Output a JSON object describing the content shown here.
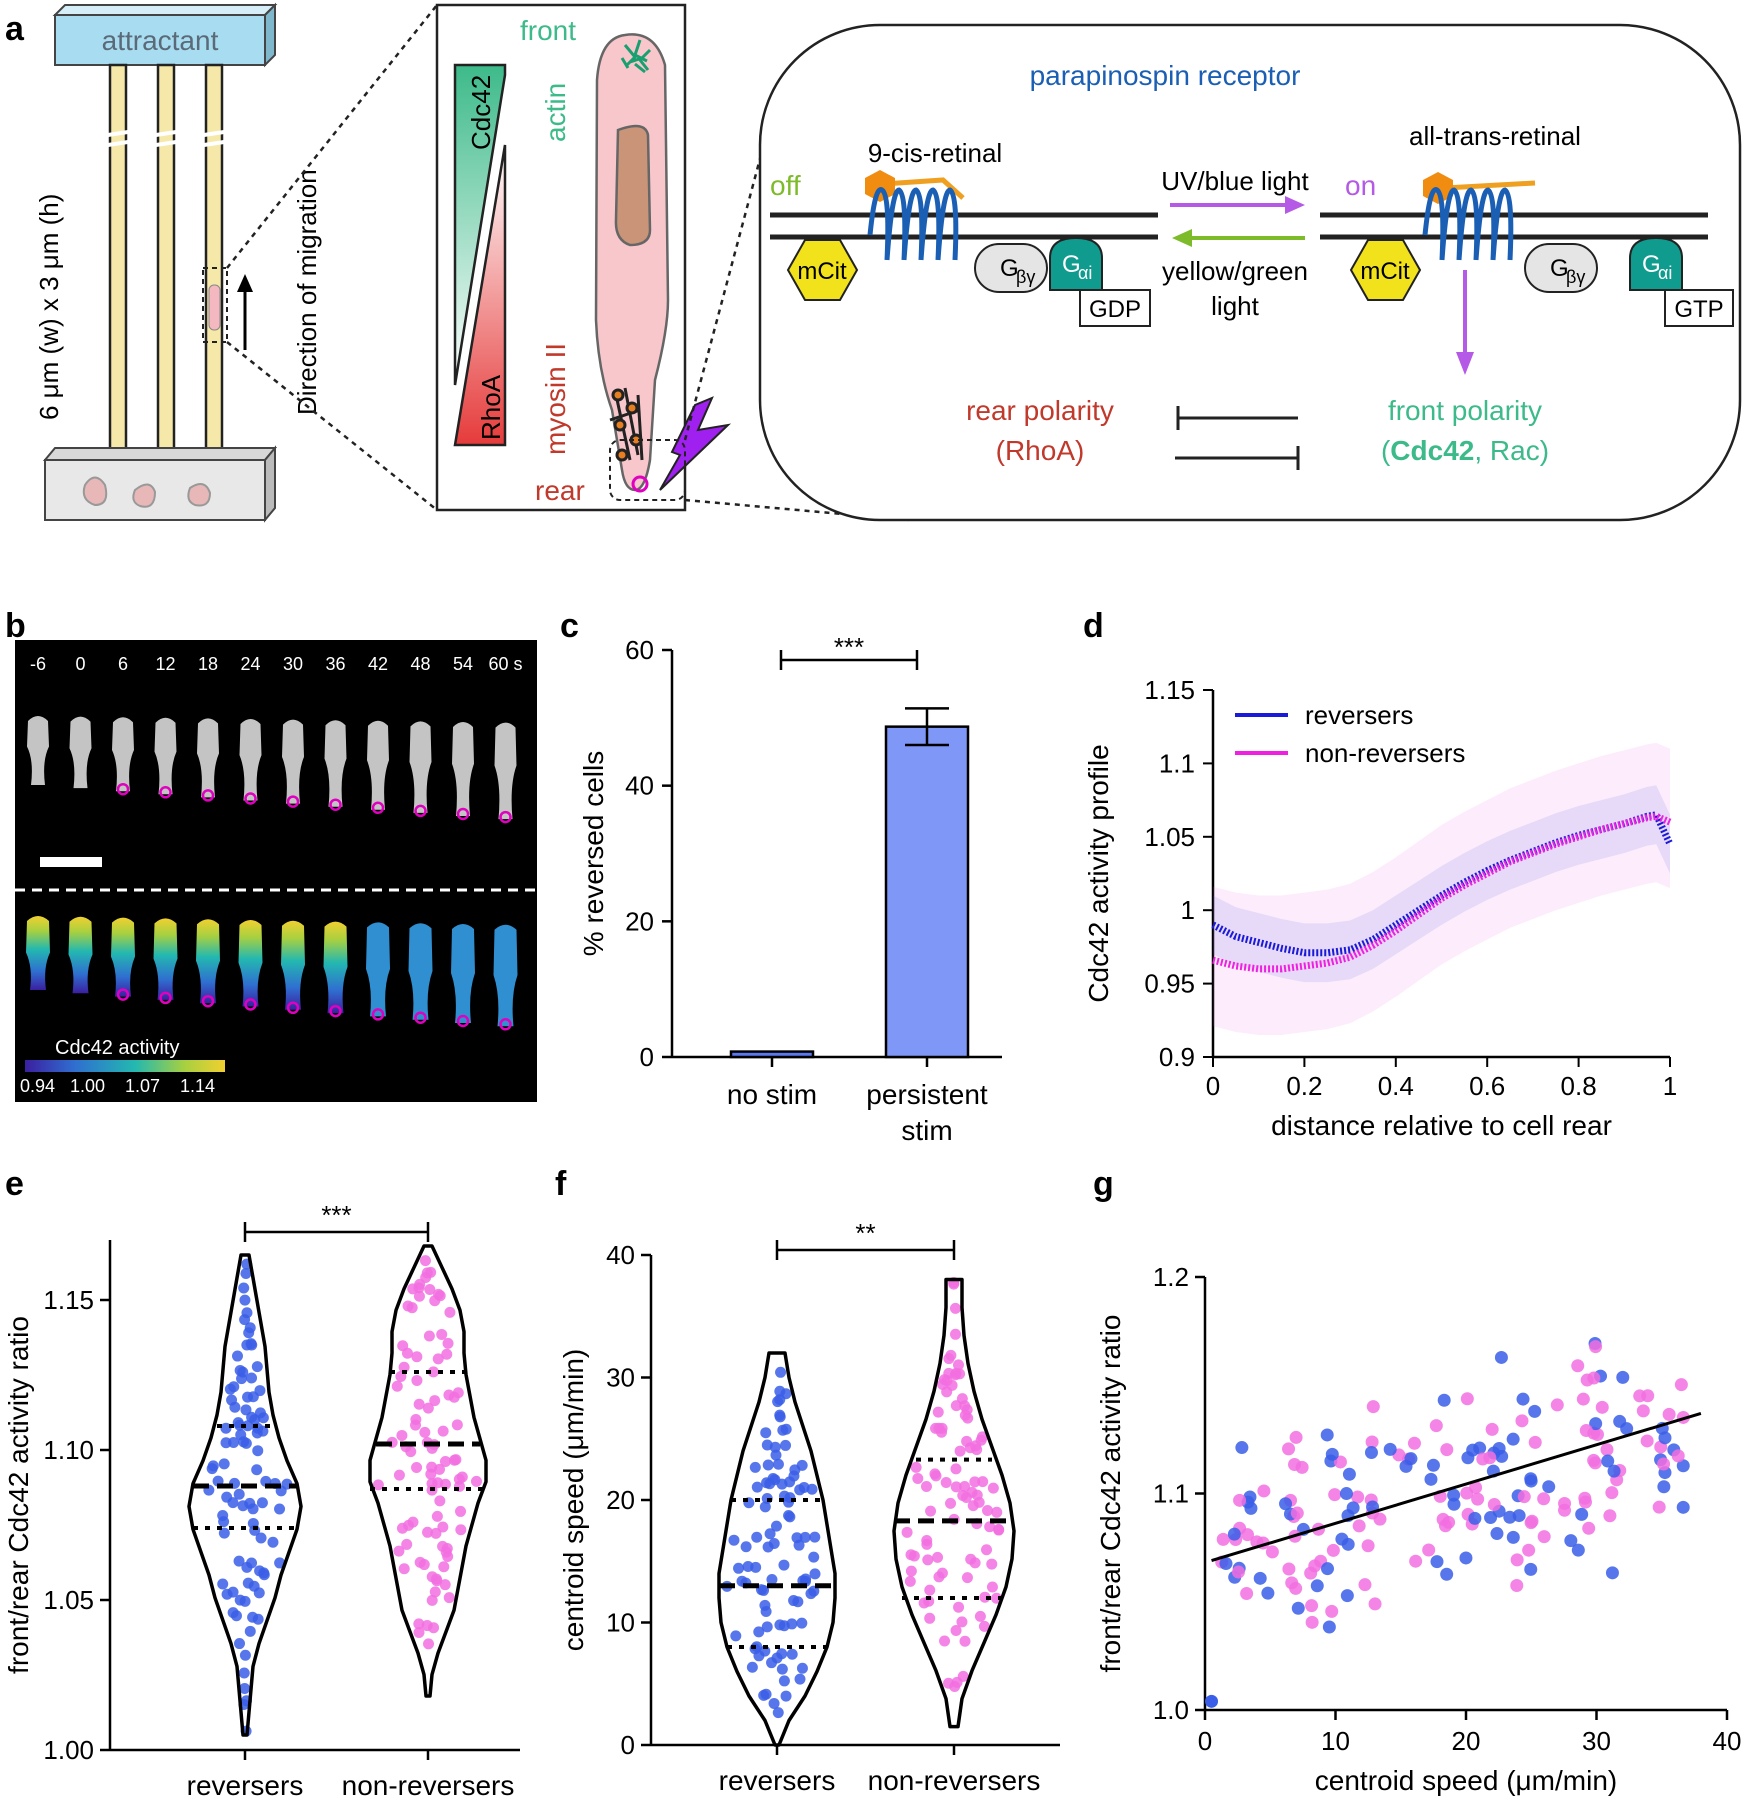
{
  "colors": {
    "front_green": "#3dba8a",
    "rear_red": "#c0392b",
    "receptor_blue": "#1a5fb4",
    "reverser_blue": "#3a5ee8",
    "nonreverser_pink": "#f26ee0",
    "light_purple": "#b45ae6",
    "light_green": "#7dbb2b",
    "attractant_blue": "#a8dcf0",
    "cell_pink": "#f7c7cc",
    "mcit_yellow": "#f2e21c",
    "galpha_teal": "#0f9b8e"
  },
  "panel_labels": {
    "a": "a",
    "b": "b",
    "c": "c",
    "d": "d",
    "e": "e",
    "f": "f",
    "g": "g"
  },
  "panel_a": {
    "attractant": "attractant",
    "channel_dims": "6 μm (w) x 3 μm (h)",
    "direction": "Direction of migration",
    "front": "front",
    "rear": "rear",
    "actin": "actin",
    "myosin": "myosin II",
    "cdc42": "Cdc42",
    "rhoa": "RhoA",
    "receptor_title": "parapinospin receptor",
    "cis_retinal": "9-cis-retinal",
    "trans_retinal": "all-trans-retinal",
    "off": "off",
    "on": "on",
    "uv_light": "UV/blue light",
    "yellow_light_1": "yellow/green",
    "yellow_light_2": "light",
    "mcit": "mCit",
    "gbg": "G",
    "gbg_sub": "βγ",
    "gai": "G",
    "gai_sub": "αi",
    "gdp": "GDP",
    "gtp": "GTP",
    "rear_polarity": "rear polarity",
    "rear_polarity_sub": "(RhoA)",
    "front_polarity": "front polarity",
    "front_paren_open": "(",
    "front_cdc42": "Cdc42",
    "front_rac": ", Rac)"
  },
  "panel_b": {
    "timepoints": [
      "-6",
      "0",
      "6",
      "12",
      "18",
      "24",
      "30",
      "36",
      "42",
      "48",
      "54",
      "60 s"
    ],
    "colorbar_label": "Cdc42 activity",
    "colorbar_ticks": [
      "0.94",
      "1.00",
      "1.07",
      "1.14"
    ]
  },
  "chart_data": [
    {
      "id": "c",
      "type": "bar",
      "categories": [
        "no stim",
        "persistent stim"
      ],
      "values": [
        0.8,
        48.7
      ],
      "errors": [
        0,
        2.7
      ],
      "ylabel": "% reversed cells",
      "ylim": [
        0,
        60
      ],
      "yticks": [
        "0",
        "20",
        "40",
        "60"
      ],
      "significance": "***"
    },
    {
      "id": "d",
      "type": "line",
      "xlabel": "distance relative to cell rear",
      "ylabel": "Cdc42 activity profile",
      "xlim": [
        0,
        1
      ],
      "ylim": [
        0.9,
        1.15
      ],
      "xticks": [
        "0",
        "0.2",
        "0.4",
        "0.6",
        "0.8",
        "1"
      ],
      "yticks": [
        "0.9",
        "0.95",
        "1",
        "1.05",
        "1.1",
        "1.15"
      ],
      "legend_position": "top-left",
      "x": [
        0,
        0.05,
        0.1,
        0.15,
        0.2,
        0.25,
        0.3,
        0.35,
        0.4,
        0.45,
        0.5,
        0.55,
        0.6,
        0.65,
        0.7,
        0.75,
        0.8,
        0.85,
        0.9,
        0.95,
        0.97,
        1.0
      ],
      "series": [
        {
          "name": "reversers",
          "values": [
            0.99,
            0.982,
            0.978,
            0.974,
            0.971,
            0.971,
            0.973,
            0.98,
            0.99,
            1.0,
            1.01,
            1.019,
            1.027,
            1.034,
            1.04,
            1.046,
            1.051,
            1.055,
            1.059,
            1.064,
            1.065,
            1.045
          ]
        },
        {
          "name": "non-reversers",
          "values": [
            0.966,
            0.962,
            0.96,
            0.96,
            0.962,
            0.964,
            0.968,
            0.976,
            0.986,
            0.997,
            1.008,
            1.017,
            1.025,
            1.033,
            1.039,
            1.045,
            1.05,
            1.055,
            1.059,
            1.063,
            1.064,
            1.06
          ]
        }
      ]
    },
    {
      "id": "e",
      "type": "violin",
      "categories": [
        "reversers",
        "non-reversers"
      ],
      "ylabel": "front/rear Cdc42 activity ratio",
      "ylim": [
        1.0,
        1.17
      ],
      "yticks": [
        "1.00",
        "1.05",
        "1.10",
        "1.15"
      ],
      "significance": "***",
      "groups": [
        {
          "name": "reversers",
          "min": 1.005,
          "max": 1.165,
          "median": 1.088,
          "q1": 1.074,
          "q3": 1.108
        },
        {
          "name": "non-reversers",
          "min": 1.018,
          "max": 1.168,
          "median": 1.102,
          "q1": 1.087,
          "q3": 1.126
        }
      ]
    },
    {
      "id": "f",
      "type": "violin",
      "categories": [
        "reversers",
        "non-reversers"
      ],
      "ylabel": "centroid speed (μm/min)",
      "ylim": [
        0,
        40
      ],
      "yticks": [
        "0",
        "10",
        "20",
        "30",
        "40"
      ],
      "significance": "**",
      "groups": [
        {
          "name": "reversers",
          "min": 0,
          "max": 32,
          "median": 13,
          "q1": 8,
          "q3": 20
        },
        {
          "name": "non-reversers",
          "min": 1.5,
          "max": 38,
          "median": 18.3,
          "q1": 12,
          "q3": 23.3
        }
      ]
    },
    {
      "id": "g",
      "type": "scatter",
      "xlabel": "centroid speed (μm/min)",
      "ylabel": "front/rear Cdc42 activity ratio",
      "xlim": [
        0,
        40
      ],
      "ylim": [
        1.0,
        1.2
      ],
      "xticks": [
        "0",
        "10",
        "20",
        "30",
        "40"
      ],
      "yticks": [
        "1.0",
        "1.1",
        "1.2"
      ],
      "fit_line": {
        "x": [
          0.5,
          38
        ],
        "y": [
          1.069,
          1.137
        ]
      }
    }
  ]
}
